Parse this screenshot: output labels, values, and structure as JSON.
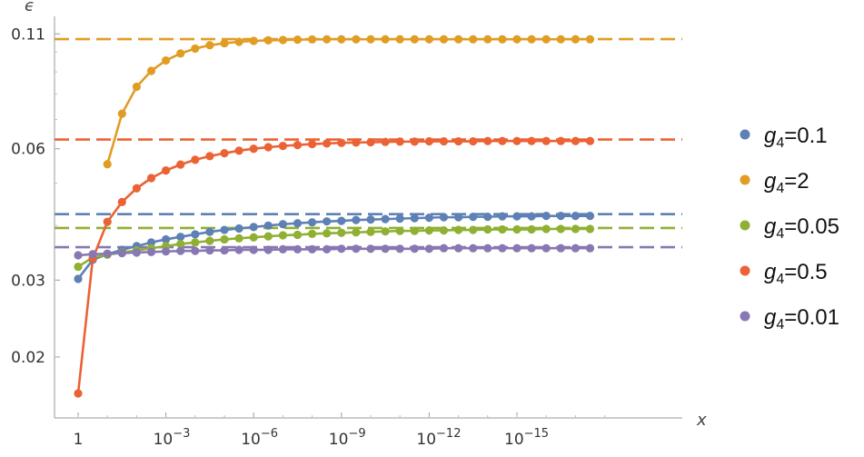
{
  "chart_data": {
    "type": "line",
    "title": "",
    "xlabel": "x",
    "ylabel": "ϵ",
    "x_scale": "log",
    "x_tick_labels": [
      "1",
      "10",
      "10",
      "10",
      "10",
      "10"
    ],
    "x_tick_exponents": [
      "",
      "−3",
      "−6",
      "−9",
      "−12",
      "−15"
    ],
    "x_tick_values": [
      1,
      0.001,
      1e-06,
      1e-09,
      1e-12,
      1e-15
    ],
    "xlim": [
      1,
      1e-18
    ],
    "y_scale": "log",
    "y_tick_labels": [
      "0.02",
      "0.03",
      "0.06",
      "0.11"
    ],
    "y_tick_values": [
      0.02,
      0.03,
      0.06,
      0.11
    ],
    "ylim": [
      0.0145,
      0.115
    ],
    "legend_position": "right",
    "series": [
      {
        "name": "g4=0.1",
        "label_base": "g",
        "label_sub": "4",
        "label_value": "=0.1",
        "color": "#5E81B5",
        "asymptote": 0.0425,
        "x": [
          1,
          0.3162,
          0.1,
          0.03162,
          0.01,
          0.003162,
          0.001,
          0.0003162,
          0.0001,
          3.162e-05,
          1e-05,
          3.162e-06,
          1e-06,
          3.162e-07,
          1e-07,
          3.162e-08,
          1e-08,
          3.162e-09,
          1e-09,
          3.162e-10,
          1e-10,
          3.162e-11,
          1e-11,
          3.162e-12,
          1e-12,
          3.162e-13,
          1e-13,
          3.162e-14,
          1e-14,
          3.162e-15,
          1e-15,
          3.162e-16,
          1e-16,
          3.162e-17,
          1e-17,
          3.162e-18
        ],
        "values": [
          0.0302,
          0.0334,
          0.0344,
          0.0352,
          0.0359,
          0.0366,
          0.0372,
          0.0377,
          0.0382,
          0.0387,
          0.0391,
          0.0394,
          0.0397,
          0.04,
          0.0403,
          0.0405,
          0.0407,
          0.0409,
          0.041,
          0.0412,
          0.0413,
          0.0414,
          0.0415,
          0.0416,
          0.0417,
          0.0418,
          0.0418,
          0.0419,
          0.0419,
          0.042,
          0.042,
          0.042,
          0.0421,
          0.0421,
          0.0421,
          0.0421
        ]
      },
      {
        "name": "g4=2",
        "label_base": "g",
        "label_sub": "4",
        "label_value": "=2",
        "color": "#E19C24",
        "asymptote": 0.107,
        "x": [
          0.1,
          0.03162,
          0.01,
          0.003162,
          0.001,
          0.0003162,
          0.0001,
          3.162e-05,
          1e-05,
          3.162e-06,
          1e-06,
          3.162e-07,
          1e-07,
          3.162e-08,
          1e-08,
          3.162e-09,
          1e-09,
          3.162e-10,
          1e-10,
          3.162e-11,
          1e-11,
          3.162e-12,
          1e-12,
          3.162e-13,
          1e-13,
          3.162e-14,
          1e-14,
          3.162e-15,
          1e-15,
          3.162e-16,
          1e-16,
          3.162e-17,
          1e-17,
          3.162e-18
        ],
        "values": [
          0.0553,
          0.0722,
          0.0832,
          0.0905,
          0.0956,
          0.0992,
          0.1018,
          0.1036,
          0.1047,
          0.1055,
          0.106,
          0.1063,
          0.1065,
          0.1067,
          0.1068,
          0.1069,
          0.1069,
          0.1069,
          0.1069,
          0.1069,
          0.1069,
          0.1069,
          0.1069,
          0.1069,
          0.1069,
          0.1069,
          0.1069,
          0.1069,
          0.1069,
          0.1069,
          0.1069,
          0.1069,
          0.1069,
          0.1069
        ]
      },
      {
        "name": "g4=0.05",
        "label_base": "g",
        "label_sub": "4",
        "label_value": "=0.05",
        "color": "#8FB032",
        "asymptote": 0.0395,
        "x": [
          1,
          0.3162,
          0.1,
          0.03162,
          0.01,
          0.003162,
          0.001,
          0.0003162,
          0.0001,
          3.162e-05,
          1e-05,
          3.162e-06,
          1e-06,
          3.162e-07,
          1e-07,
          3.162e-08,
          1e-08,
          3.162e-09,
          1e-09,
          3.162e-10,
          1e-10,
          3.162e-11,
          1e-11,
          3.162e-12,
          1e-12,
          3.162e-13,
          1e-13,
          3.162e-14,
          1e-14,
          3.162e-15,
          1e-15,
          3.162e-16,
          1e-16,
          3.162e-17,
          1e-17,
          3.162e-18
        ],
        "values": [
          0.0322,
          0.0338,
          0.0343,
          0.0347,
          0.0351,
          0.0355,
          0.0359,
          0.0363,
          0.0366,
          0.0369,
          0.0372,
          0.0374,
          0.0376,
          0.0378,
          0.038,
          0.0381,
          0.0383,
          0.0384,
          0.0385,
          0.0386,
          0.0387,
          0.0388,
          0.0389,
          0.0389,
          0.039,
          0.039,
          0.0391,
          0.0391,
          0.0392,
          0.0392,
          0.0392,
          0.0392,
          0.0393,
          0.0393,
          0.0393,
          0.0393
        ]
      },
      {
        "name": "g4=0.5",
        "label_base": "g",
        "label_sub": "4",
        "label_value": "=0.5",
        "color": "#EB6235",
        "asymptote": 0.063,
        "x": [
          1,
          0.3162,
          0.1,
          0.03162,
          0.01,
          0.003162,
          0.001,
          0.0003162,
          0.0001,
          3.162e-05,
          1e-05,
          3.162e-06,
          1e-06,
          3.162e-07,
          1e-07,
          3.162e-08,
          1e-08,
          3.162e-09,
          1e-09,
          3.162e-10,
          1e-10,
          3.162e-11,
          1e-11,
          3.162e-12,
          1e-12,
          3.162e-13,
          1e-13,
          3.162e-14,
          1e-14,
          3.162e-15,
          1e-15,
          3.162e-16,
          1e-16,
          3.162e-17,
          1e-17,
          3.162e-18
        ],
        "values": [
          0.0165,
          0.0336,
          0.0408,
          0.0453,
          0.0487,
          0.0514,
          0.0535,
          0.0552,
          0.0566,
          0.0577,
          0.0586,
          0.0594,
          0.06,
          0.0605,
          0.0609,
          0.0612,
          0.0615,
          0.0617,
          0.0619,
          0.062,
          0.0621,
          0.0622,
          0.0623,
          0.0623,
          0.0624,
          0.0624,
          0.0624,
          0.0624,
          0.0625,
          0.0625,
          0.0625,
          0.0625,
          0.0625,
          0.0625,
          0.0625,
          0.0625
        ]
      },
      {
        "name": "g4=0.01",
        "label_base": "g",
        "label_sub": "4",
        "label_value": "=0.01",
        "color": "#8778B3",
        "asymptote": 0.0357,
        "x": [
          1,
          0.3162,
          0.1,
          0.03162,
          0.01,
          0.003162,
          0.001,
          0.0003162,
          0.0001,
          3.162e-05,
          1e-05,
          3.162e-06,
          1e-06,
          3.162e-07,
          1e-07,
          3.162e-08,
          1e-08,
          3.162e-09,
          1e-09,
          3.162e-10,
          1e-10,
          3.162e-11,
          1e-11,
          3.162e-12,
          1e-12,
          3.162e-13,
          1e-13,
          3.162e-14,
          1e-14,
          3.162e-15,
          1e-15,
          3.162e-16,
          1e-16,
          3.162e-17,
          1e-17,
          3.162e-18
        ],
        "values": [
          0.0342,
          0.0344,
          0.0345,
          0.0346,
          0.0347,
          0.0348,
          0.0349,
          0.035,
          0.035,
          0.0351,
          0.0351,
          0.0352,
          0.0352,
          0.0352,
          0.0353,
          0.0353,
          0.0353,
          0.0353,
          0.0354,
          0.0354,
          0.0354,
          0.0354,
          0.0354,
          0.0354,
          0.0354,
          0.0355,
          0.0355,
          0.0355,
          0.0355,
          0.0355,
          0.0355,
          0.0355,
          0.0355,
          0.0355,
          0.0355,
          0.0355
        ]
      }
    ]
  }
}
